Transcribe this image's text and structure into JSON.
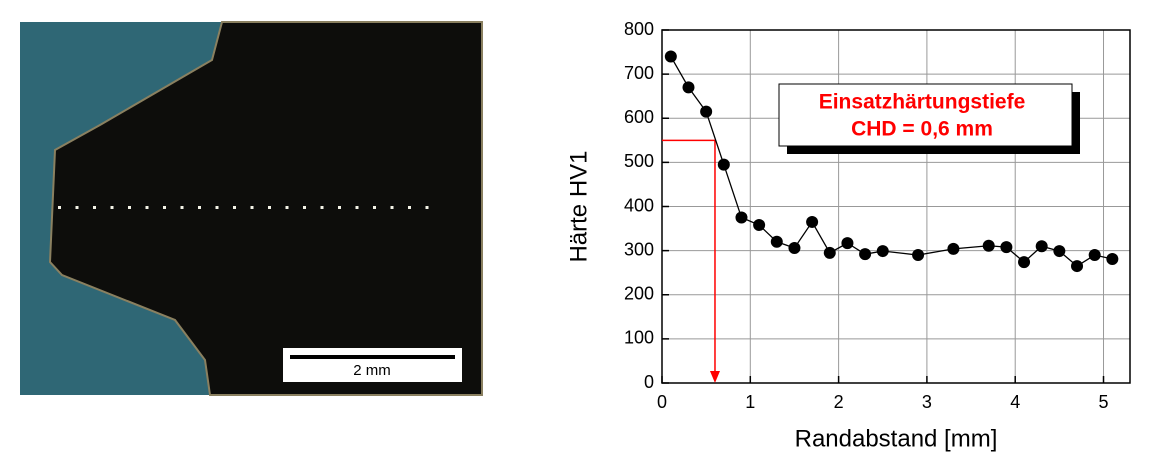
{
  "micrograph": {
    "scale_bar_label": "2 mm"
  },
  "chart_data": {
    "type": "line",
    "xlabel": "Randabstand [mm]",
    "ylabel": "Härte HV1",
    "x": [
      0.1,
      0.3,
      0.5,
      0.7,
      0.9,
      1.1,
      1.3,
      1.5,
      1.7,
      1.9,
      2.1,
      2.3,
      2.5,
      2.9,
      3.3,
      3.7,
      3.9,
      4.1,
      4.3,
      4.5,
      4.7,
      4.9,
      5.1
    ],
    "series": [
      {
        "color": "#000000",
        "values": [
          740,
          670,
          615,
          495,
          375,
          358,
          320,
          306,
          365,
          295,
          317,
          292,
          299,
          290,
          304,
          311,
          308,
          274,
          310,
          299,
          265,
          290,
          281
        ]
      }
    ],
    "xlim": [
      0,
      5.3
    ],
    "ylim": [
      0,
      800
    ],
    "xticks": [
      0,
      1,
      2,
      3,
      4,
      5
    ],
    "yticks": [
      0,
      100,
      200,
      300,
      400,
      500,
      600,
      700,
      800
    ],
    "grid": true,
    "annotation": {
      "lines": [
        "Einsatzhärtungstiefe",
        "CHD = 0,6 mm"
      ],
      "color": "#ff0000",
      "x": 0.6,
      "y": 550
    }
  }
}
